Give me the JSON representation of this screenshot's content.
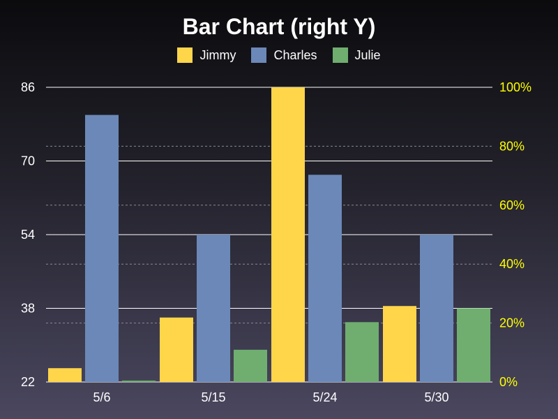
{
  "chart_data": {
    "type": "bar",
    "title": "Bar Chart (right Y)",
    "categories": [
      "5/6",
      "5/15",
      "5/24",
      "5/30"
    ],
    "series": [
      {
        "name": "Jimmy",
        "color": "#ffd54a",
        "values": [
          25,
          36,
          86,
          38.5
        ]
      },
      {
        "name": "Charles",
        "color": "#6b88b8",
        "values": [
          80,
          54,
          67,
          54
        ]
      },
      {
        "name": "Julie",
        "color": "#6fae6f",
        "values": [
          22.3,
          29,
          35,
          38
        ]
      }
    ],
    "left_axis": {
      "ylim": [
        22,
        86
      ],
      "ticks": [
        "22",
        "38",
        "54",
        "70",
        "86"
      ]
    },
    "right_axis": {
      "ylim": [
        0,
        100
      ],
      "ticks": [
        "0%",
        "20%",
        "40%",
        "60%",
        "80%",
        "100%"
      ],
      "color": "#ffff00"
    },
    "legend_position": "top-center",
    "grid": true
  }
}
